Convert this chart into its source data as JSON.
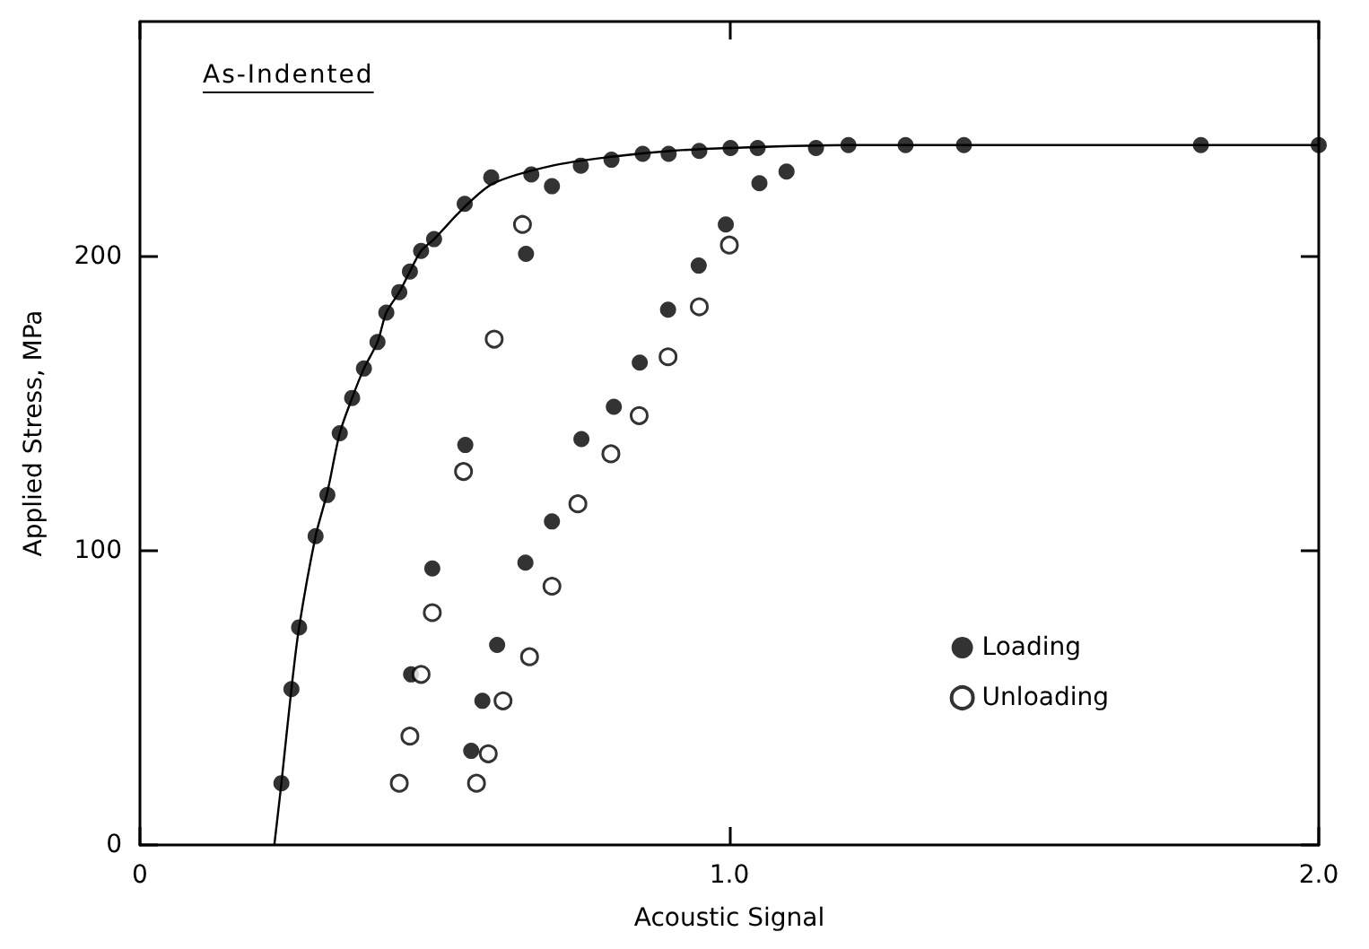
{
  "chart_data": {
    "type": "scatter",
    "title": "As-Indented",
    "xlabel": "Acoustic Signal",
    "ylabel": "Applied Stress, MPa",
    "xlim": [
      0,
      2.0
    ],
    "ylim": [
      0,
      280
    ],
    "xticks": [
      0,
      {
        "value": 1,
        "label": "1.0"
      },
      {
        "value": 2,
        "label": "2.0"
      }
    ],
    "yticks": [
      0,
      100,
      200
    ],
    "grid": false,
    "legend": "bottom right",
    "marker": "circle",
    "series": [
      {
        "name": "Loading",
        "color": "#000000",
        "x": [
          0.24,
          0.257,
          0.27,
          0.298,
          0.318,
          0.339,
          0.36,
          0.38,
          0.403,
          0.418,
          0.44,
          0.458,
          0.477,
          0.499,
          0.551,
          0.596,
          0.664,
          0.748,
          0.8,
          0.853,
          0.897,
          0.949,
          1.002,
          1.048,
          1.147,
          1.202,
          1.299,
          1.398,
          1.8,
          2.0,
          0.699,
          0.655,
          0.994,
          0.948,
          0.896,
          0.848,
          0.804,
          0.749,
          0.552,
          1.051,
          1.097,
          0.699,
          0.654,
          0.496,
          0.606,
          0.46,
          0.581,
          0.562
        ],
        "values": [
          21,
          53,
          74,
          105,
          119,
          140,
          152,
          162,
          171,
          181,
          188,
          195,
          202,
          206,
          218,
          227,
          228,
          231,
          233,
          235,
          235,
          236,
          237,
          237,
          237,
          238,
          238,
          238,
          238,
          238,
          224,
          201,
          211,
          197,
          182,
          164,
          149,
          138,
          136,
          225,
          229,
          110,
          96,
          94,
          68,
          58,
          49,
          32
        ]
      },
      {
        "name": "Unloading",
        "color": "#000000",
        "x": [
          0.649,
          0.601,
          1.0,
          0.949,
          0.896,
          0.847,
          0.799,
          0.549,
          0.743,
          0.699,
          0.496,
          0.661,
          0.477,
          0.616,
          0.458,
          0.591,
          0.44,
          0.571
        ],
        "values": [
          211,
          172,
          204,
          183,
          166,
          146,
          133,
          127,
          116,
          88,
          79,
          64,
          58,
          49,
          37,
          31,
          21,
          21
        ]
      },
      {
        "type": "line",
        "color": "#000000",
        "marker": "none",
        "line_style": "solid",
        "x": [
          0.228,
          0.24,
          0.257,
          0.27,
          0.298,
          0.318,
          0.339,
          0.36,
          0.38,
          0.403,
          0.418,
          0.44,
          0.458,
          0.477,
          0.499,
          0.551,
          0.6,
          0.7,
          0.8,
          0.9,
          1.0,
          1.2,
          2.0
        ],
        "values": [
          0,
          21,
          53,
          74,
          105,
          120,
          140,
          152,
          162,
          171,
          181,
          188,
          195,
          202,
          206,
          217,
          225,
          231,
          234,
          236,
          237,
          238,
          238
        ]
      }
    ]
  }
}
